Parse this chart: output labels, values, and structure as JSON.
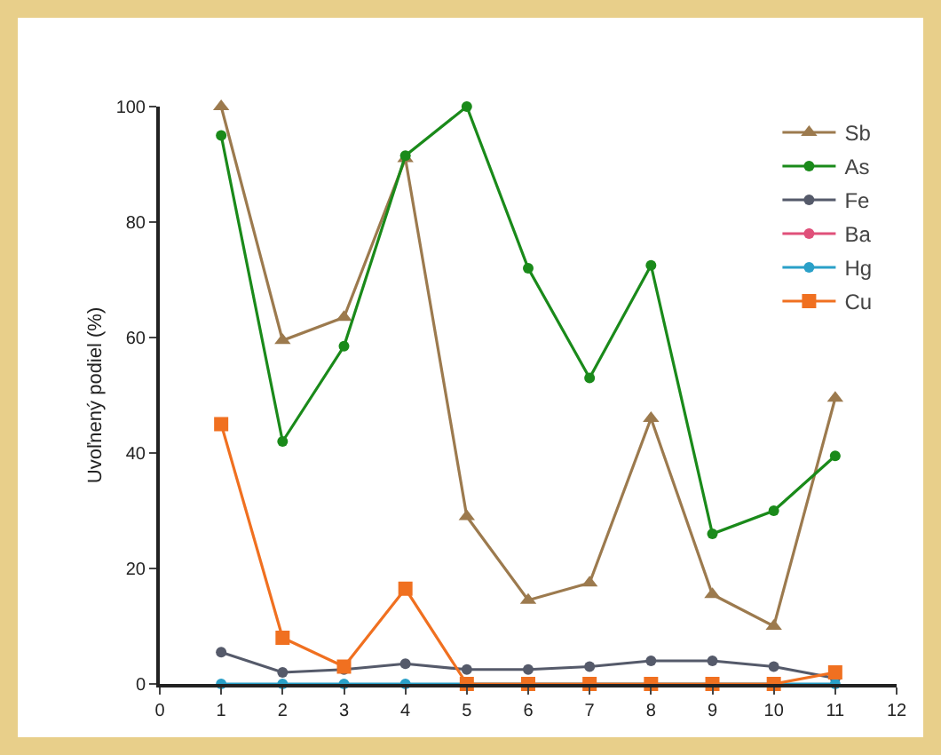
{
  "chart_data": {
    "type": "line",
    "ylabel": "Uvoľnený podiel (%)",
    "x": [
      1,
      2,
      3,
      4,
      5,
      6,
      7,
      8,
      9,
      10,
      11
    ],
    "xlim": [
      0,
      12
    ],
    "xticks": [
      0,
      1,
      2,
      3,
      4,
      5,
      6,
      7,
      8,
      9,
      10,
      11,
      12
    ],
    "ylim": [
      0,
      100
    ],
    "yticks": [
      0,
      20,
      40,
      60,
      80,
      100
    ],
    "grid": false,
    "legend": "top right",
    "line_style": "solid",
    "series": [
      {
        "name": "Sb",
        "color": "#9c7a4e",
        "marker": "triangle",
        "values": [
          100,
          59.5,
          63.5,
          91,
          29,
          14.5,
          17.5,
          46,
          15.5,
          10,
          49.5
        ]
      },
      {
        "name": "As",
        "color": "#1a8a1a",
        "marker": "circle",
        "values": [
          95,
          42,
          58.5,
          91.5,
          100,
          72,
          53,
          72.5,
          26,
          30,
          39.5
        ]
      },
      {
        "name": "Fe",
        "color": "#555a6a",
        "marker": "circle",
        "values": [
          5.5,
          2,
          2.5,
          3.5,
          2.5,
          2.5,
          3,
          4,
          4,
          3,
          1
        ]
      },
      {
        "name": "Ba",
        "color": "#e0507a",
        "marker": "circle",
        "values": [
          null,
          null,
          null,
          null,
          null,
          null,
          null,
          null,
          null,
          null,
          null
        ]
      },
      {
        "name": "Hg",
        "color": "#2aa0c8",
        "marker": "circle",
        "values": [
          0,
          0,
          0,
          0,
          0,
          0,
          0,
          0,
          0,
          0,
          0
        ]
      },
      {
        "name": "Cu",
        "color": "#f07020",
        "marker": "square",
        "values": [
          45,
          8,
          3,
          16.5,
          0,
          0,
          0,
          0,
          0,
          0,
          2
        ]
      }
    ]
  }
}
